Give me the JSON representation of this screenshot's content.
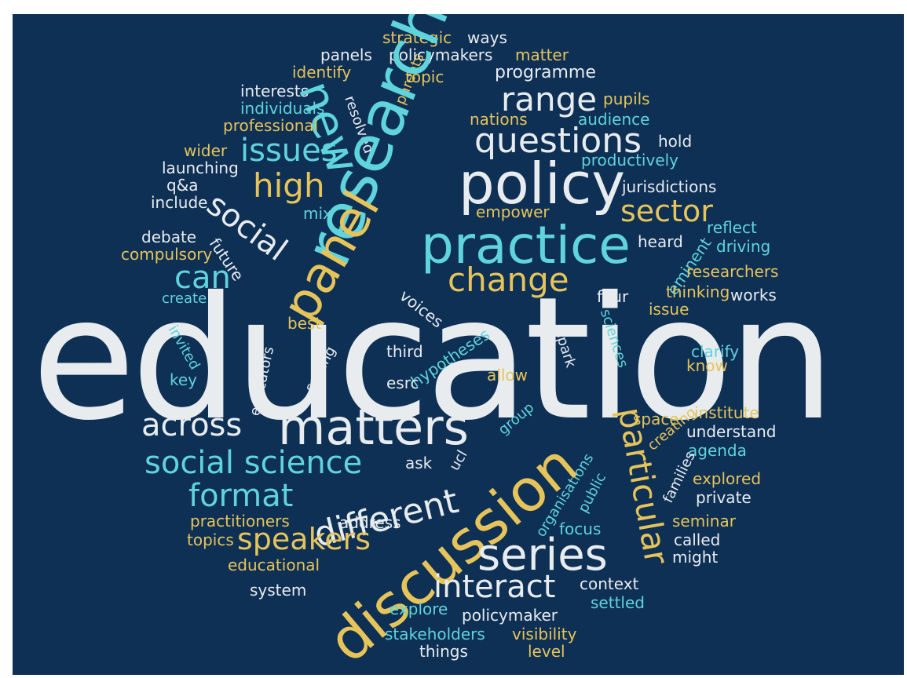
{
  "palette": {
    "background": "#0e3055",
    "yellow": "#e6c45a",
    "cyan": "#5fd4da",
    "white": "#e8ecef"
  },
  "words": {
    "education": "education",
    "research": "research",
    "policy": "policy",
    "practice": "practice",
    "discussion": "discussion",
    "matters": "matters",
    "panel": "panel",
    "new": "new",
    "questions": "questions",
    "series": "series",
    "social": "social",
    "social_science": "social science",
    "speakers": "speakers",
    "interact": "interact",
    "different": "different",
    "format": "format",
    "across": "across",
    "particular": "particular",
    "change": "change",
    "issues": "issues",
    "high": "high",
    "range": "range",
    "sector": "sector",
    "can": "can",
    "strategic": "strategic",
    "ways": "ways",
    "panels": "panels",
    "policymakers": "policymakers",
    "matter": "matter",
    "identify": "identify",
    "resolved": "resolved",
    "topic": "topic",
    "programme": "programme",
    "interests": "interests",
    "individuals": "individuals",
    "parents": "parents",
    "pupils": "pupils",
    "professional": "professional",
    "nations": "nations",
    "audience": "audience",
    "hold": "hold",
    "wider": "wider",
    "launching": "launching",
    "productively": "productively",
    "jurisdictions": "jurisdictions",
    "q_a": "q&a",
    "include": "include",
    "mix": "mix",
    "empower": "empower",
    "reflect": "reflect",
    "debate": "debate",
    "heard": "heard",
    "driving": "driving",
    "compulsory": "compulsory",
    "future": "future",
    "eminent": "eminent",
    "researchers": "researchers",
    "create": "create",
    "voices": "voices",
    "four": "four",
    "thinking": "thinking",
    "works": "works",
    "issue": "issue",
    "best": "best",
    "invited": "invited",
    "setting": "setting",
    "hypotheses": "hypotheses",
    "third": "third",
    "sciences": "sciences",
    "spark": "spark",
    "clarify": "clarify",
    "know": "know",
    "key": "key",
    "educators": "educators",
    "esrc": "esrc",
    "allow": "allow",
    "institute": "institute",
    "space": "space",
    "creating": "creating",
    "group": "group",
    "understand": "understand",
    "ask": "ask",
    "ucl": "ucl",
    "organisations": "organisations",
    "agenda": "agenda",
    "families": "families",
    "explored": "explored",
    "private": "private",
    "public": "public",
    "practitioners": "practitioners",
    "address": "address",
    "seminar": "seminar",
    "topics": "topics",
    "focus": "focus",
    "called": "called",
    "might": "might",
    "educational": "educational",
    "context": "context",
    "system": "system",
    "settled": "settled",
    "explore": "explore",
    "policymaker": "policymaker",
    "stakeholders": "stakeholders",
    "visibility": "visibility",
    "things": "things",
    "level": "level"
  }
}
